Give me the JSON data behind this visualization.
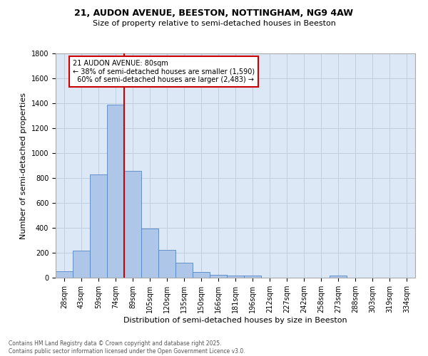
{
  "title_line1": "21, AUDON AVENUE, BEESTON, NOTTINGHAM, NG9 4AW",
  "title_line2": "Size of property relative to semi-detached houses in Beeston",
  "xlabel": "Distribution of semi-detached houses by size in Beeston",
  "ylabel": "Number of semi-detached properties",
  "bin_labels": [
    "28sqm",
    "43sqm",
    "59sqm",
    "74sqm",
    "89sqm",
    "105sqm",
    "120sqm",
    "135sqm",
    "150sqm",
    "166sqm",
    "181sqm",
    "196sqm",
    "212sqm",
    "227sqm",
    "242sqm",
    "258sqm",
    "273sqm",
    "288sqm",
    "303sqm",
    "319sqm",
    "334sqm"
  ],
  "bar_heights": [
    50,
    220,
    830,
    1390,
    860,
    395,
    225,
    120,
    45,
    25,
    20,
    15,
    0,
    0,
    0,
    0,
    20,
    0,
    0,
    0,
    0
  ],
  "bar_color": "#aec6e8",
  "bar_edge_color": "#5585c5",
  "vline_color": "#cc0000",
  "vline_x_index": 3.5,
  "ylim": [
    0,
    1800
  ],
  "yticks": [
    0,
    200,
    400,
    600,
    800,
    1000,
    1200,
    1400,
    1600,
    1800
  ],
  "annotation_text": "21 AUDON AVENUE: 80sqm\n← 38% of semi-detached houses are smaller (1,590)\n  60% of semi-detached houses are larger (2,483) →",
  "annotation_box_color": "#ffffff",
  "annotation_box_edge": "#cc0000",
  "bg_color": "#ffffff",
  "plot_bg_color": "#dce8f5",
  "grid_color": "#c0cfe0",
  "footer_line1": "Contains HM Land Registry data © Crown copyright and database right 2025.",
  "footer_line2": "Contains public sector information licensed under the Open Government Licence v3.0.",
  "title_fontsize": 9,
  "subtitle_fontsize": 8,
  "ylabel_fontsize": 8,
  "xlabel_fontsize": 8,
  "tick_fontsize": 7,
  "annotation_fontsize": 7,
  "footer_fontsize": 5.5
}
